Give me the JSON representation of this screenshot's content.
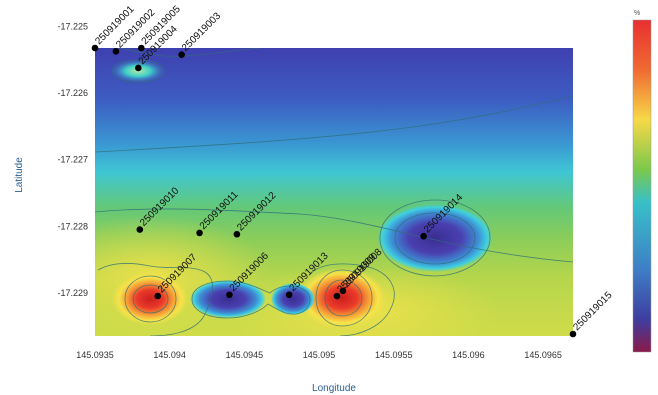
{
  "chart_data": {
    "type": "heatmap",
    "title": "",
    "xlabel": "Longitude",
    "ylabel": "Latitude",
    "colorbar_label": "%",
    "xlim": [
      145.0935,
      145.0967
    ],
    "ylim": [
      -17.22965,
      -17.22532
    ],
    "xticks": [
      145.0935,
      145.094,
      145.0945,
      145.095,
      145.0955,
      145.096,
      145.0965
    ],
    "xtick_labels": [
      "145.0935",
      "145.094",
      "145.0945",
      "145.095",
      "145.0955",
      "145.096",
      "145.0965"
    ],
    "yticks": [
      -17.225,
      -17.226,
      -17.227,
      -17.228,
      -17.229
    ],
    "ytick_labels": [
      "-17.225",
      "-17.226",
      "-17.227",
      "-17.228",
      "-17.229"
    ],
    "colorscale": [
      "#8a1a4a",
      "#e8322a",
      "#f4a431",
      "#f7e84a",
      "#a8d452",
      "#4cb84a",
      "#35c7d6",
      "#3e82c8",
      "#3f3aa0"
    ],
    "points": [
      {
        "id": "250919001",
        "x": 145.0935,
        "y": -17.22532
      },
      {
        "id": "250919002",
        "x": 145.09364,
        "y": -17.22537
      },
      {
        "id": "250919005",
        "x": 145.09381,
        "y": -17.22532
      },
      {
        "id": "250919004",
        "x": 145.09379,
        "y": -17.22562
      },
      {
        "id": "250919003",
        "x": 145.09408,
        "y": -17.22542
      },
      {
        "id": "250919010",
        "x": 145.0938,
        "y": -17.22805
      },
      {
        "id": "250919011",
        "x": 145.0942,
        "y": -17.2281
      },
      {
        "id": "250919012",
        "x": 145.09445,
        "y": -17.22812
      },
      {
        "id": "250919007",
        "x": 145.09392,
        "y": -17.22905
      },
      {
        "id": "250919006",
        "x": 145.0944,
        "y": -17.22903
      },
      {
        "id": "250919013",
        "x": 145.0948,
        "y": -17.22903
      },
      {
        "id": "250919008",
        "x": 145.09516,
        "y": -17.22897
      },
      {
        "id": "250919009",
        "x": 145.09512,
        "y": -17.22905
      },
      {
        "id": "250919014",
        "x": 145.0957,
        "y": -17.22815
      },
      {
        "id": "250919015",
        "x": 145.0967,
        "y": -17.22962
      }
    ]
  }
}
